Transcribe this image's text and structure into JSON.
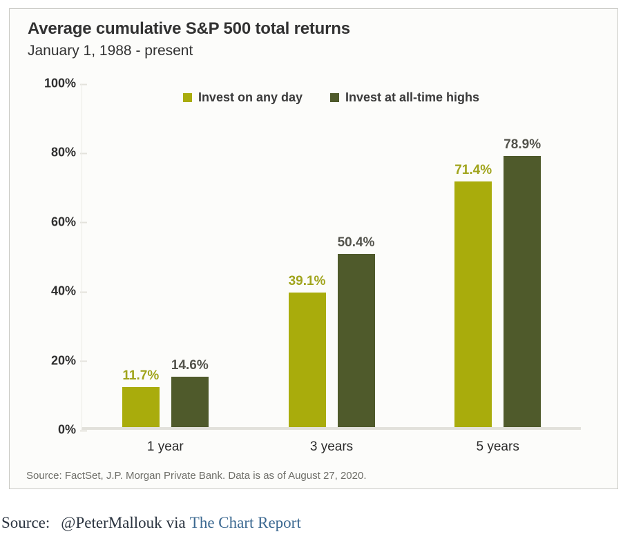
{
  "chart": {
    "title": "Average cumulative S&P 500 total returns",
    "subtitle": "January 1, 1988 - present",
    "source_note": "Source: FactSet, J.P. Morgan Private Bank. Data is as of August 27, 2020."
  },
  "chart_data": {
    "type": "bar",
    "title": "Average cumulative S&P 500 total returns",
    "subtitle": "January 1, 1988 - present",
    "categories": [
      "1 year",
      "3 years",
      "5 years"
    ],
    "series": [
      {
        "name": "Invest on any day",
        "values": [
          11.7,
          39.1,
          71.4
        ],
        "color": "#a9ac0c",
        "label_color": "#a0a41c"
      },
      {
        "name": "Invest at all-time highs",
        "values": [
          14.6,
          50.4,
          78.9
        ],
        "color": "#4f5a2b",
        "label_color": "#53534c"
      }
    ],
    "value_suffix": "%",
    "ylim": [
      0,
      100
    ],
    "yticks": [
      0,
      20,
      40,
      60,
      80,
      100
    ],
    "ytick_suffix": "%",
    "grid": false,
    "legend_position": "top-center",
    "source_note": "Source: FactSet, J.P. Morgan Private Bank. Data is as of August 27, 2020."
  },
  "caption": {
    "prefix": "Source:",
    "handle": "@PeterMallouk",
    "middle": "via",
    "link_text": "The Chart Report"
  },
  "colors": {
    "card_background": "#fcfcfa",
    "card_border": "#c9c9c4",
    "axis_line": "#e2e1db",
    "caption_link": "#3c6991"
  }
}
